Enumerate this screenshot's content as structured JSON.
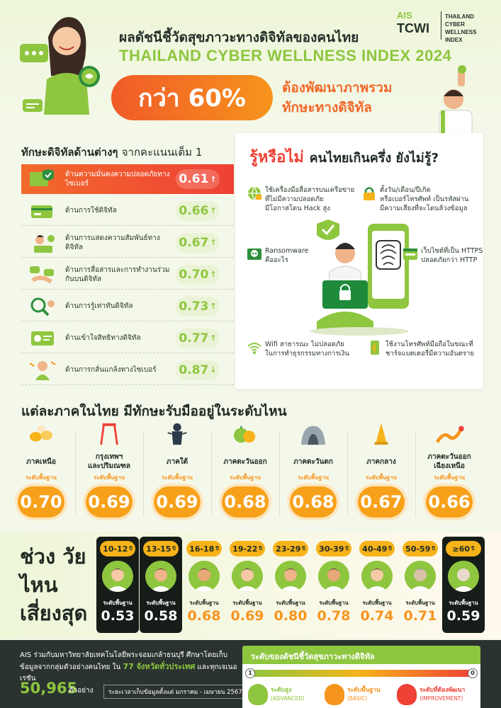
{
  "header": {
    "title_th": "ผลดัชนีชี้วัดสุขภาวะทางดิจิทัลของคนไทย",
    "title_en": "THAILAND CYBER WELLNESS INDEX 2024",
    "pill": "กว่า 60%",
    "pill_text": "ต้องพัฒนาภาพรวม ทักษะทางดิจิทัล",
    "logo_ais": "AIS",
    "logo_tcwi": "TCWI",
    "logo_full": "THAILAND\nCYBER WELLNESS\nINDEX"
  },
  "skills": {
    "title_bold": "ทักษะดิจิทัลด้านต่างๆ",
    "title_light": "จากคะแนนเต็ม 1",
    "items": [
      {
        "label": "ด้านความมั่นคงความปลอดภัยทางไซเบอร์",
        "value": "0.61",
        "arrow": "↑",
        "icon": "shield-screen-icon"
      },
      {
        "label": "ด้านการใช้ดิจิทัล",
        "value": "0.66",
        "arrow": "↑",
        "icon": "credit-card-icon"
      },
      {
        "label": "ด้านการแสดงความสัมพันธ์ทางดิจิทัล",
        "value": "0.67",
        "arrow": "↑",
        "icon": "person-laptop-icon"
      },
      {
        "label": "ด้านการสื่อสารและการทำงานร่วมกันบนดิจิทัล",
        "value": "0.70",
        "arrow": "↑",
        "icon": "hands-chat-icon"
      },
      {
        "label": "ด้านการรู้เท่าทันดิจิทัล",
        "value": "0.73",
        "arrow": "↑",
        "icon": "magnifier-person-icon"
      },
      {
        "label": "ด้านเข้าใจสิทธิทางดิจิทัล",
        "value": "0.77",
        "arrow": "↑",
        "icon": "id-card-icon"
      },
      {
        "label": "ด้านการกลั่นแกล้งทางไซเบอร์",
        "value": "0.87",
        "arrow": "↓",
        "icon": "sad-person-icon"
      }
    ]
  },
  "did_you_know": {
    "title_red": "รู้หรือไม่",
    "title_dark": "คนไทยเกินครึ่ง ยังไม่รู้?",
    "tips": [
      {
        "text": "ใช้เครื่องมือสื่อสารบนเครือข่าย\nที่ไม่มีความปลอดภัย\nมีโอกาสโดน Hack สูง",
        "icon": "globe-lock-icon"
      },
      {
        "text": "ตั้งวัน/เดือน/ปีเกิด\nหรือเบอร์โทรศัพท์ เป็นรหัสผ่าน\nมีความเสี่ยงที่จะโดนล้วงข้อมูล",
        "icon": "padlock-icon"
      },
      {
        "text": "Ransomware\nคืออะไร",
        "icon": "skull-icon"
      },
      {
        "text": "เว็บไซต์ที่เป็น HTTPS\nปลอดภัยกว่า HTTP",
        "icon": "https-icon"
      },
      {
        "text": "Wifi สาธารณะ ไม่ปลอดภัย\nในการทำธุรกรรมทางการเงิน",
        "icon": "wifi-icon"
      },
      {
        "text": "ใช้งานโทรศัพท์มือถือในขณะที่\nชาร์จแบตเตอรี่มีความอันตราย",
        "icon": "phone-charge-icon"
      }
    ]
  },
  "regions": {
    "title": "แต่ละภาคในไทย มีทักษะรับมืออยู่ในระดับไหน",
    "items": [
      {
        "name": "ภาคเหนือ",
        "level": "ระดับพื้นฐาน",
        "value": "0.70",
        "icon": "lantern-icon"
      },
      {
        "name": "กรุงเทพฯ\nและปริมณฑล",
        "level": "ระดับพื้นฐาน",
        "value": "0.69",
        "icon": "giant-swing-icon"
      },
      {
        "name": "ภาคใต้",
        "level": "ระดับพื้นฐาน",
        "value": "0.69",
        "icon": "shadow-puppet-icon"
      },
      {
        "name": "ภาคตะวันออก",
        "level": "ระดับพื้นฐาน",
        "value": "0.68",
        "icon": "durian-icon"
      },
      {
        "name": "ภาคตะวันตก",
        "level": "ระดับพื้นฐาน",
        "value": "0.68",
        "icon": "cave-icon"
      },
      {
        "name": "ภาคกลาง",
        "level": "ระดับพื้นฐาน",
        "value": "0.67",
        "icon": "pagoda-icon"
      },
      {
        "name": "ภาคตะวันออก\nเฉียงเหนือ",
        "level": "ระดับพื้นฐาน",
        "value": "0.66",
        "icon": "naga-icon"
      }
    ]
  },
  "ages": {
    "title": "ช่วง วัยไหน เสี่ยงสุด",
    "items": [
      {
        "range": "10-12",
        "unit": "ปี",
        "level": "ระดับพื้นฐาน",
        "value": "0.53",
        "dark": true
      },
      {
        "range": "13-15",
        "unit": "ปี",
        "level": "ระดับพื้นฐาน",
        "value": "0.58",
        "dark": true
      },
      {
        "range": "16-18",
        "unit": "ปี",
        "level": "ระดับพื้นฐาน",
        "value": "0.68",
        "dark": false
      },
      {
        "range": "19-22",
        "unit": "ปี",
        "level": "ระดับพื้นฐาน",
        "value": "0.69",
        "dark": false
      },
      {
        "range": "23-29",
        "unit": "ปี",
        "level": "ระดับพื้นฐาน",
        "value": "0.80",
        "dark": false
      },
      {
        "range": "30-39",
        "unit": "ปี",
        "level": "ระดับพื้นฐาน",
        "value": "0.78",
        "dark": false
      },
      {
        "range": "40-49",
        "unit": "ปี",
        "level": "ระดับพื้นฐาน",
        "value": "0.74",
        "dark": false
      },
      {
        "range": "50-59",
        "unit": "ปี",
        "level": "ระดับพื้นฐาน",
        "value": "0.71",
        "dark": false
      },
      {
        "range": "≥60",
        "unit": "ปี",
        "level": "ระดับพื้นฐาน",
        "value": "0.59",
        "dark": true
      }
    ]
  },
  "footer": {
    "line1": "AIS ร่วมกับมหาวิทยาลัยเทคโนโลยีพระจอมเกล้าธนบุรี ศึกษาโดยเก็บข้อมูลจากกลุ่มตัวอย่างคนไทย ใน",
    "line1_hl": "77 จังหวัดทั่วประเทศ",
    "line1_end": "และทุกเจเนอเรชัน",
    "count": "50,965",
    "count_unit": "ตัวอย่าง",
    "period": "ระยะเวลาเก็บข้อมูลตั้งแต่ มกราคม - เมษายน 2567"
  },
  "legend": {
    "title": "ระดับของดัชนีชี้วัดสุขภาวะทางดิจิทัล",
    "end_high": "1",
    "end_low": "0",
    "items": [
      {
        "label": "ระดับสูง",
        "sub": "(ADVANCED)",
        "color": "#8ec63f"
      },
      {
        "label": "ระดับพื้นฐาน",
        "sub": "(BASIC)",
        "color": "#f7941d"
      },
      {
        "label": "ระดับที่ต้องพัฒนา",
        "sub": "(IMPROVEMENT)",
        "color": "#ef4136"
      }
    ]
  },
  "colors": {
    "green": "#8ec63f",
    "orange": "#f7941d",
    "red": "#ef4136",
    "dark": "#161d18"
  }
}
